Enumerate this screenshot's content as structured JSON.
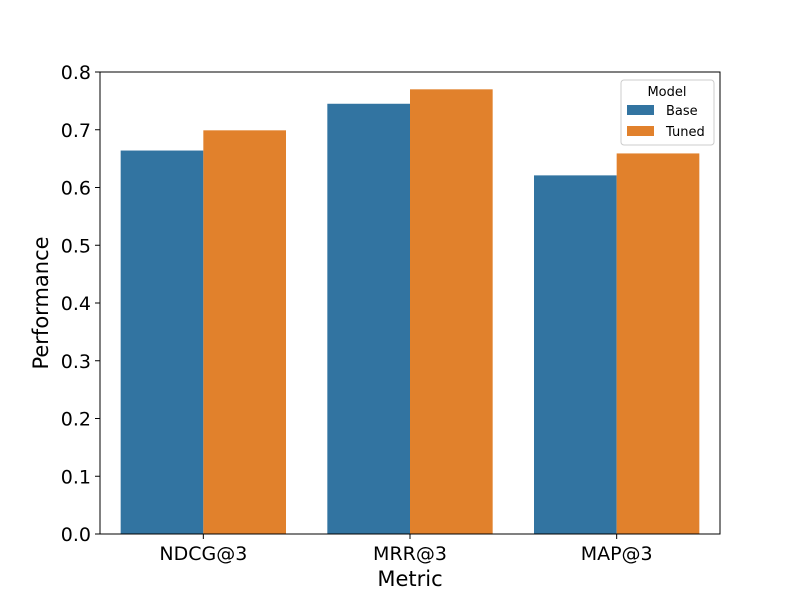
{
  "chart_data": {
    "type": "bar",
    "categories": [
      "NDCG@3",
      "MRR@3",
      "MAP@3"
    ],
    "series": [
      {
        "name": "Base",
        "values": [
          0.664,
          0.745,
          0.621
        ],
        "color": "#3274a1"
      },
      {
        "name": "Tuned",
        "values": [
          0.699,
          0.77,
          0.659
        ],
        "color": "#e1812c"
      }
    ],
    "title": "",
    "xlabel": "Metric",
    "ylabel": "Performance",
    "ylim": [
      0,
      0.8
    ],
    "yticks": [
      "0.0",
      "0.1",
      "0.2",
      "0.3",
      "0.4",
      "0.5",
      "0.6",
      "0.7",
      "0.8"
    ],
    "grid": false,
    "legend": {
      "title": "Model",
      "placement": "top-right"
    }
  }
}
